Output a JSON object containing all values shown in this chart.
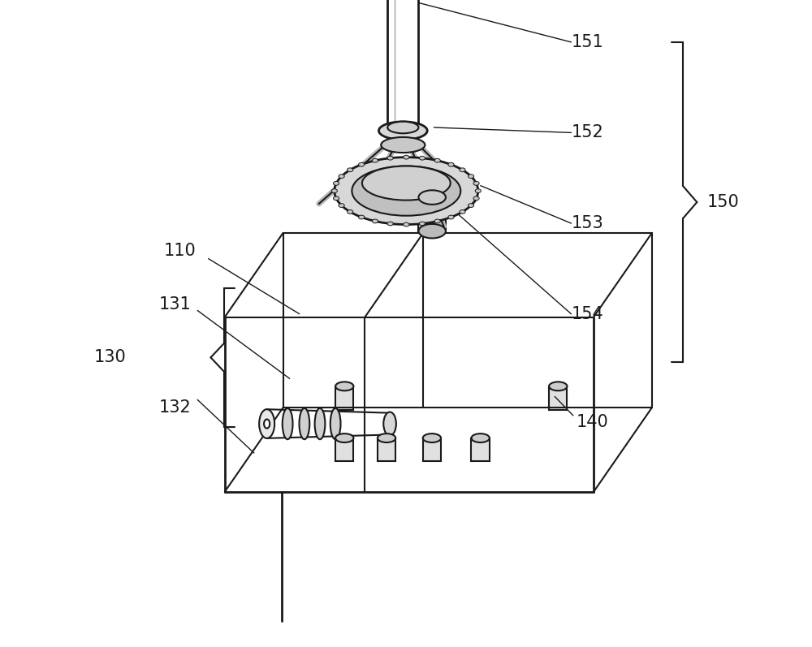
{
  "bg_color": "#ffffff",
  "line_color": "#1a1a1a",
  "lw": 1.5,
  "lw_thick": 2.0,
  "fontsize": 15
}
